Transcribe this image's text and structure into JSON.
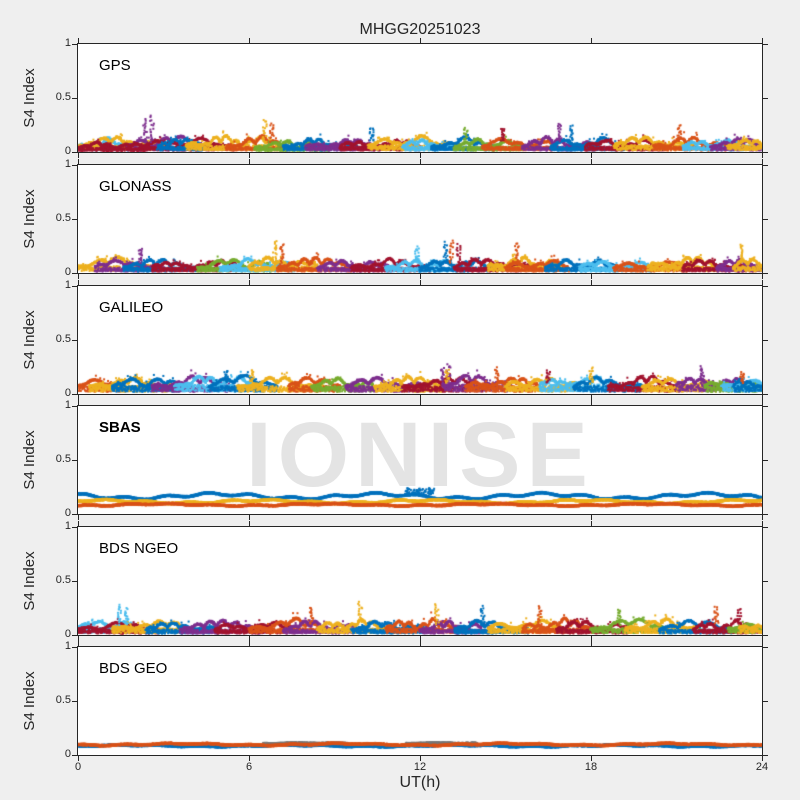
{
  "title": "MHGG20251023",
  "watermark": "IONISE",
  "axes": {
    "xlabel": "UT(h)",
    "ylabel": "S4 Index",
    "xlim": [
      0,
      24
    ],
    "ylim": [
      0,
      1
    ],
    "xticks": [
      0,
      6,
      12,
      18,
      24
    ],
    "xtick_labels": [
      "0",
      "6",
      "12",
      "18",
      "24"
    ],
    "yticks": [
      1,
      0.5,
      0
    ],
    "ytick_labels": [
      "1",
      "0.5",
      "0"
    ]
  },
  "colors": {
    "figure_bg": "#efefef",
    "plot_bg": "#ffffff",
    "axis": "#262626",
    "text": "#262626",
    "watermark": "#e4e4e4"
  },
  "palette": [
    "#0072BD",
    "#D95319",
    "#EDB120",
    "#7E2F8E",
    "#77AC30",
    "#4DBEEE",
    "#A2142F",
    "#777777"
  ],
  "seed": 20251023,
  "arc_format": [
    "palette_index",
    "t_start_h",
    "t_end_h",
    "base_s4",
    "amp_s4"
  ],
  "spike_format": [
    "palette_index",
    "t_h",
    "peak_s4"
  ],
  "line_format": [
    "palette_index",
    "base_s4",
    "wobble_s4",
    "t_start_h",
    "t_end_h"
  ],
  "chart_data": [
    {
      "label": "GPS",
      "type": "scatter",
      "bold_label": false,
      "watermark": false,
      "arcs": [
        [
          5,
          0,
          1.8,
          0.04,
          0.1
        ],
        [
          2,
          0,
          3.2,
          0.05,
          0.12
        ],
        [
          6,
          0,
          1.2,
          0.03,
          0.08
        ],
        [
          3,
          1.7,
          4.6,
          0.04,
          0.16
        ],
        [
          6,
          2.2,
          5.5,
          0.04,
          0.12
        ],
        [
          0,
          2.8,
          4.4,
          0.04,
          0.1
        ],
        [
          2,
          3.8,
          7.2,
          0.05,
          0.14
        ],
        [
          1,
          5.2,
          7.4,
          0.04,
          0.14
        ],
        [
          4,
          6.2,
          8.8,
          0.03,
          0.1
        ],
        [
          0,
          7.2,
          9.8,
          0.04,
          0.11
        ],
        [
          3,
          8.0,
          10.6,
          0.04,
          0.1
        ],
        [
          6,
          9.2,
          12.0,
          0.04,
          0.12
        ],
        [
          2,
          10.2,
          13.4,
          0.05,
          0.13
        ],
        [
          5,
          11.4,
          13.2,
          0.04,
          0.1
        ],
        [
          0,
          12.4,
          14.8,
          0.04,
          0.12
        ],
        [
          4,
          13.2,
          15.6,
          0.04,
          0.11
        ],
        [
          1,
          14.2,
          16.8,
          0.04,
          0.13
        ],
        [
          3,
          15.6,
          18.2,
          0.04,
          0.14
        ],
        [
          0,
          16.6,
          19.2,
          0.04,
          0.13
        ],
        [
          6,
          17.8,
          20.6,
          0.04,
          0.11
        ],
        [
          2,
          18.8,
          21.6,
          0.05,
          0.13
        ],
        [
          1,
          20.2,
          22.8,
          0.04,
          0.14
        ],
        [
          5,
          21.2,
          23.6,
          0.04,
          0.1
        ],
        [
          3,
          22.2,
          24,
          0.04,
          0.12
        ],
        [
          2,
          22.8,
          24,
          0.05,
          0.1
        ],
        [
          6,
          0.8,
          2.4,
          0.03,
          0.07
        ]
      ],
      "spikes": [
        [
          3,
          2.35,
          0.3
        ],
        [
          3,
          2.6,
          0.33
        ],
        [
          2,
          6.55,
          0.3
        ],
        [
          1,
          6.8,
          0.26
        ],
        [
          0,
          10.3,
          0.22
        ],
        [
          3,
          16.9,
          0.27
        ],
        [
          0,
          17.3,
          0.24
        ],
        [
          1,
          21.1,
          0.25
        ],
        [
          6,
          14.9,
          0.22
        ],
        [
          4,
          13.6,
          0.22
        ]
      ]
    },
    {
      "label": "GLONASS",
      "type": "scatter",
      "bold_label": false,
      "watermark": false,
      "arcs": [
        [
          2,
          0,
          2.6,
          0.05,
          0.13
        ],
        [
          3,
          0.6,
          3.0,
          0.04,
          0.12
        ],
        [
          0,
          1.6,
          4.2,
          0.04,
          0.11
        ],
        [
          6,
          2.6,
          5.8,
          0.04,
          0.12
        ],
        [
          4,
          4.2,
          6.8,
          0.04,
          0.13
        ],
        [
          5,
          5.0,
          7.6,
          0.04,
          0.12
        ],
        [
          2,
          6.0,
          8.4,
          0.05,
          0.15
        ],
        [
          1,
          7.0,
          9.6,
          0.04,
          0.13
        ],
        [
          3,
          8.4,
          11.0,
          0.04,
          0.11
        ],
        [
          6,
          9.6,
          12.4,
          0.04,
          0.12
        ],
        [
          5,
          10.8,
          13.6,
          0.04,
          0.11
        ],
        [
          0,
          12.0,
          14.6,
          0.04,
          0.12
        ],
        [
          6,
          13.2,
          16.0,
          0.04,
          0.13
        ],
        [
          2,
          14.4,
          17.0,
          0.05,
          0.13
        ],
        [
          1,
          15.0,
          17.2,
          0.04,
          0.12
        ],
        [
          0,
          16.4,
          19.0,
          0.04,
          0.12
        ],
        [
          5,
          17.6,
          20.2,
          0.04,
          0.11
        ],
        [
          1,
          18.8,
          21.4,
          0.04,
          0.13
        ],
        [
          2,
          20.0,
          22.6,
          0.05,
          0.13
        ],
        [
          6,
          21.2,
          23.8,
          0.04,
          0.12
        ],
        [
          3,
          22.4,
          24,
          0.04,
          0.11
        ],
        [
          2,
          23.0,
          24,
          0.05,
          0.11
        ]
      ],
      "spikes": [
        [
          2,
          6.9,
          0.3
        ],
        [
          1,
          7.15,
          0.27
        ],
        [
          0,
          12.9,
          0.28
        ],
        [
          1,
          13.1,
          0.3
        ],
        [
          6,
          13.35,
          0.26
        ],
        [
          1,
          15.4,
          0.28
        ],
        [
          2,
          23.3,
          0.27
        ],
        [
          5,
          11.9,
          0.24
        ],
        [
          3,
          2.2,
          0.22
        ]
      ]
    },
    {
      "label": "GALILEO",
      "type": "scatter",
      "bold_label": false,
      "watermark": false,
      "arcs": [
        [
          1,
          0,
          1.6,
          0.06,
          0.1
        ],
        [
          2,
          0.4,
          3.4,
          0.06,
          0.12
        ],
        [
          0,
          1.2,
          3.8,
          0.06,
          0.13
        ],
        [
          3,
          2.6,
          5.4,
          0.06,
          0.14
        ],
        [
          5,
          3.4,
          6.4,
          0.07,
          0.14
        ],
        [
          0,
          4.6,
          7.0,
          0.06,
          0.15
        ],
        [
          2,
          5.6,
          8.6,
          0.06,
          0.13
        ],
        [
          1,
          7.4,
          9.2,
          0.06,
          0.12
        ],
        [
          4,
          8.2,
          10.4,
          0.06,
          0.12
        ],
        [
          3,
          9.4,
          12.2,
          0.06,
          0.13
        ],
        [
          2,
          10.4,
          13.0,
          0.06,
          0.13
        ],
        [
          6,
          11.4,
          14.2,
          0.06,
          0.13
        ],
        [
          3,
          12.8,
          15.2,
          0.07,
          0.15
        ],
        [
          1,
          13.6,
          16.2,
          0.06,
          0.13
        ],
        [
          2,
          15.0,
          17.6,
          0.06,
          0.13
        ],
        [
          5,
          16.2,
          18.8,
          0.07,
          0.14
        ],
        [
          0,
          17.4,
          19.8,
          0.06,
          0.13
        ],
        [
          6,
          18.6,
          21.2,
          0.06,
          0.14
        ],
        [
          2,
          19.8,
          22.4,
          0.06,
          0.12
        ],
        [
          3,
          21.0,
          23.6,
          0.07,
          0.15
        ],
        [
          4,
          22.0,
          24,
          0.06,
          0.12
        ],
        [
          5,
          22.6,
          24,
          0.07,
          0.13
        ],
        [
          0,
          23.0,
          24,
          0.06,
          0.1
        ]
      ],
      "spikes": [
        [
          3,
          13.0,
          0.27
        ],
        [
          3,
          12.8,
          0.24
        ],
        [
          2,
          12.95,
          0.22
        ],
        [
          1,
          14.7,
          0.24
        ],
        [
          3,
          21.9,
          0.25
        ],
        [
          2,
          6.1,
          0.22
        ],
        [
          0,
          5.2,
          0.22
        ],
        [
          6,
          16.5,
          0.22
        ],
        [
          2,
          18.0,
          0.24
        ],
        [
          1,
          23.3,
          0.2
        ]
      ]
    },
    {
      "label": "SBAS",
      "type": "line",
      "bold_label": true,
      "watermark": true,
      "lines": [
        [
          0,
          0.165,
          0.02,
          0,
          24
        ],
        [
          2,
          0.115,
          0.012,
          0,
          24
        ],
        [
          1,
          0.085,
          0.008,
          0,
          24
        ]
      ],
      "burst": {
        "palette_index": 0,
        "t0": 11.5,
        "t1": 12.5,
        "base": 0.17,
        "top": 0.24
      }
    },
    {
      "label": "BDS NGEO",
      "type": "scatter",
      "bold_label": false,
      "watermark": false,
      "arcs": [
        [
          5,
          0,
          2.2,
          0.05,
          0.14
        ],
        [
          6,
          0,
          2.8,
          0.04,
          0.1
        ],
        [
          2,
          1.2,
          3.8,
          0.05,
          0.12
        ],
        [
          0,
          2.4,
          5.0,
          0.04,
          0.11
        ],
        [
          3,
          3.6,
          6.6,
          0.04,
          0.12
        ],
        [
          6,
          4.8,
          7.6,
          0.04,
          0.12
        ],
        [
          1,
          6.0,
          8.6,
          0.05,
          0.14
        ],
        [
          3,
          7.2,
          9.8,
          0.04,
          0.13
        ],
        [
          2,
          8.4,
          11.0,
          0.05,
          0.13
        ],
        [
          0,
          9.6,
          12.2,
          0.04,
          0.12
        ],
        [
          1,
          10.8,
          13.4,
          0.05,
          0.14
        ],
        [
          3,
          12.0,
          14.6,
          0.04,
          0.12
        ],
        [
          0,
          13.2,
          15.8,
          0.04,
          0.13
        ],
        [
          2,
          14.4,
          17.0,
          0.05,
          0.13
        ],
        [
          1,
          15.6,
          18.2,
          0.05,
          0.14
        ],
        [
          6,
          16.8,
          19.4,
          0.04,
          0.13
        ],
        [
          4,
          18.0,
          20.6,
          0.05,
          0.13
        ],
        [
          2,
          19.2,
          21.8,
          0.05,
          0.13
        ],
        [
          0,
          20.4,
          23.0,
          0.04,
          0.12
        ],
        [
          6,
          21.6,
          24,
          0.04,
          0.13
        ],
        [
          4,
          22.8,
          24,
          0.05,
          0.12
        ],
        [
          2,
          23.2,
          24,
          0.05,
          0.11
        ]
      ],
      "spikes": [
        [
          5,
          1.45,
          0.28
        ],
        [
          5,
          1.7,
          0.24
        ],
        [
          2,
          9.9,
          0.3
        ],
        [
          1,
          8.2,
          0.26
        ],
        [
          2,
          12.6,
          0.28
        ],
        [
          0,
          14.2,
          0.26
        ],
        [
          1,
          16.2,
          0.26
        ],
        [
          4,
          19.0,
          0.24
        ],
        [
          1,
          22.4,
          0.26
        ],
        [
          6,
          23.2,
          0.24
        ]
      ]
    },
    {
      "label": "BDS GEO",
      "type": "line",
      "bold_label": false,
      "watermark": false,
      "lines": [
        [
          0,
          0.085,
          0.006,
          0,
          24
        ],
        [
          7,
          0.105,
          0.004,
          6.5,
          9.5
        ],
        [
          7,
          0.105,
          0.004,
          11.5,
          14
        ],
        [
          1,
          0.098,
          0.007,
          0,
          24
        ]
      ]
    }
  ]
}
